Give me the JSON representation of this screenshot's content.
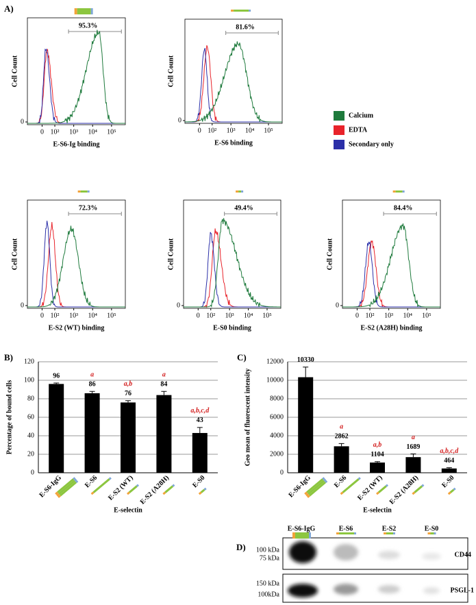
{
  "panel_labels": [
    "A)",
    "B)",
    "C)",
    "D)"
  ],
  "flow_legend": [
    {
      "name": "Calcium",
      "color": "#1e7a3c"
    },
    {
      "name": "EDTA",
      "color": "#e8232a"
    },
    {
      "name": "Secondary only",
      "color": "#2b2fa8"
    }
  ],
  "chart_data": [
    {
      "type": "flow",
      "title": "95.3%",
      "xlabel": "E-S6-Ig binding",
      "ylabel": "Cell Count",
      "log_scale": true,
      "xticks": [
        0,
        {
          "value": 100,
          "label": "10²"
        },
        {
          "value": 1000,
          "label": "10³"
        },
        {
          "value": 10000,
          "label": "10⁴"
        },
        {
          "value": 100000,
          "label": "10⁵"
        }
      ],
      "yticks": [
        0
      ]
    },
    {
      "type": "flow",
      "title": "81.6%",
      "xlabel": "E-S6 binding",
      "ylabel": "Cell Count",
      "log_scale": true,
      "xticks": [
        0,
        {
          "value": 100,
          "label": "10²"
        },
        {
          "value": 1000,
          "label": "10³"
        },
        {
          "value": 10000,
          "label": "10⁴"
        },
        {
          "value": 100000,
          "label": "10⁵"
        }
      ],
      "yticks": [
        0
      ]
    },
    {
      "type": "flow",
      "title": "72.3%",
      "xlabel": "E-S2 (WT) binding",
      "ylabel": "Cell Count",
      "log_scale": true,
      "xticks": [
        0,
        {
          "value": 100,
          "label": "10²"
        },
        {
          "value": 1000,
          "label": "10³"
        },
        {
          "value": 10000,
          "label": "10⁴"
        },
        {
          "value": 100000,
          "label": "10⁵"
        }
      ],
      "yticks": [
        0
      ]
    },
    {
      "type": "flow",
      "title": "49.4%",
      "xlabel": "E-S0 binding",
      "ylabel": "Cell Count",
      "log_scale": true,
      "xticks": [
        0,
        {
          "value": 100,
          "label": "10²"
        },
        {
          "value": 1000,
          "label": "10³"
        },
        {
          "value": 10000,
          "label": "10⁴"
        },
        {
          "value": 100000,
          "label": "10⁵"
        }
      ],
      "yticks": [
        0
      ]
    },
    {
      "type": "flow",
      "title": "84.4%",
      "xlabel": "E-S2 (A28H) binding",
      "ylabel": "Cell Count",
      "log_scale": true,
      "xticks": [
        0,
        {
          "value": 100,
          "label": "10²"
        },
        {
          "value": 1000,
          "label": "10³"
        },
        {
          "value": 10000,
          "label": "10⁴"
        },
        {
          "value": 100000,
          "label": "10⁵"
        }
      ],
      "yticks": [
        0
      ]
    },
    {
      "type": "bar",
      "ylabel": "Percentage of bound cells",
      "xlabel": "E-selectin",
      "categories": [
        "E-S6-IgG",
        "E-S6",
        "E-S2 (WT)",
        "E-S2 (A28H)",
        "E-S0"
      ],
      "values": [
        96,
        86,
        76,
        84,
        43
      ],
      "errors": [
        1,
        2,
        2,
        4,
        6
      ],
      "letters": [
        null,
        "a",
        "a,b",
        "a",
        "a,b,c,d"
      ],
      "color": "#000000",
      "ylim": [
        0,
        120
      ],
      "yticks": [
        0,
        20,
        40,
        60,
        80,
        100,
        120
      ],
      "grid": true
    },
    {
      "type": "bar",
      "ylabel": "Geo mean of fluorescent intensity",
      "xlabel": "E-selectin",
      "categories": [
        "E-S6-IgG",
        "E-S6",
        "E-S2 (WT)",
        "E-S2 (A28H)",
        "E-S0"
      ],
      "values": [
        10330,
        2862,
        1104,
        1689,
        464
      ],
      "errors": [
        1100,
        300,
        100,
        350,
        80
      ],
      "letters": [
        null,
        "a",
        "a,b",
        "a",
        "a,b,c,d"
      ],
      "color": "#000000",
      "ylim": [
        0,
        12000
      ],
      "yticks": [
        0,
        2000,
        4000,
        6000,
        8000,
        10000,
        12000
      ],
      "grid": true
    }
  ],
  "blot": {
    "lanes": [
      "E-S6-IgG",
      "E-S6",
      "E-S2",
      "E-S0"
    ],
    "markers_top": [
      "100 kDa",
      "75 kDa"
    ],
    "markers_bottom": [
      "150 kDa",
      "100kDa"
    ],
    "targets": [
      "CD44",
      "PSGL-1"
    ]
  }
}
